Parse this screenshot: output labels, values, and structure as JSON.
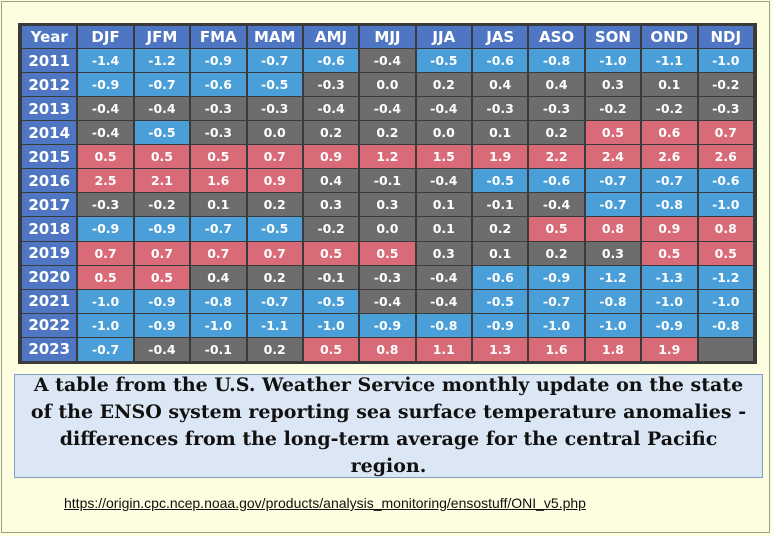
{
  "table": {
    "header": [
      "Year",
      "DJF",
      "JFM",
      "FMA",
      "MAM",
      "AMJ",
      "MJJ",
      "JJA",
      "JAS",
      "ASO",
      "SON",
      "OND",
      "NDJ"
    ],
    "rows": [
      {
        "year": "2011",
        "values": [
          "-1.4",
          "-1.2",
          "-0.9",
          "-0.7",
          "-0.6",
          "-0.4",
          "-0.5",
          "-0.6",
          "-0.8",
          "-1.0",
          "-1.1",
          "-1.0"
        ]
      },
      {
        "year": "2012",
        "values": [
          "-0.9",
          "-0.7",
          "-0.6",
          "-0.5",
          "-0.3",
          "0.0",
          "0.2",
          "0.4",
          "0.4",
          "0.3",
          "0.1",
          "-0.2"
        ]
      },
      {
        "year": "2013",
        "values": [
          "-0.4",
          "-0.4",
          "-0.3",
          "-0.3",
          "-0.4",
          "-0.4",
          "-0.4",
          "-0.3",
          "-0.3",
          "-0.2",
          "-0.2",
          "-0.3"
        ]
      },
      {
        "year": "2014",
        "values": [
          "-0.4",
          "-0.5",
          "-0.3",
          "0.0",
          "0.2",
          "0.2",
          "0.0",
          "0.1",
          "0.2",
          "0.5",
          "0.6",
          "0.7"
        ]
      },
      {
        "year": "2015",
        "values": [
          "0.5",
          "0.5",
          "0.5",
          "0.7",
          "0.9",
          "1.2",
          "1.5",
          "1.9",
          "2.2",
          "2.4",
          "2.6",
          "2.6"
        ]
      },
      {
        "year": "2016",
        "values": [
          "2.5",
          "2.1",
          "1.6",
          "0.9",
          "0.4",
          "-0.1",
          "-0.4",
          "-0.5",
          "-0.6",
          "-0.7",
          "-0.7",
          "-0.6"
        ]
      },
      {
        "year": "2017",
        "values": [
          "-0.3",
          "-0.2",
          "0.1",
          "0.2",
          "0.3",
          "0.3",
          "0.1",
          "-0.1",
          "-0.4",
          "-0.7",
          "-0.8",
          "-1.0"
        ]
      },
      {
        "year": "2018",
        "values": [
          "-0.9",
          "-0.9",
          "-0.7",
          "-0.5",
          "-0.2",
          "0.0",
          "0.1",
          "0.2",
          "0.5",
          "0.8",
          "0.9",
          "0.8"
        ]
      },
      {
        "year": "2019",
        "values": [
          "0.7",
          "0.7",
          "0.7",
          "0.7",
          "0.5",
          "0.5",
          "0.3",
          "0.1",
          "0.2",
          "0.3",
          "0.5",
          "0.5"
        ]
      },
      {
        "year": "2020",
        "values": [
          "0.5",
          "0.5",
          "0.4",
          "0.2",
          "-0.1",
          "-0.3",
          "-0.4",
          "-0.6",
          "-0.9",
          "-1.2",
          "-1.3",
          "-1.2"
        ]
      },
      {
        "year": "2021",
        "values": [
          "-1.0",
          "-0.9",
          "-0.8",
          "-0.7",
          "-0.5",
          "-0.4",
          "-0.4",
          "-0.5",
          "-0.7",
          "-0.8",
          "-1.0",
          "-1.0"
        ]
      },
      {
        "year": "2022",
        "values": [
          "-1.0",
          "-0.9",
          "-1.0",
          "-1.1",
          "-1.0",
          "-0.9",
          "-0.8",
          "-0.9",
          "-1.0",
          "-1.0",
          "-0.9",
          "-0.8"
        ]
      },
      {
        "year": "2023",
        "values": [
          "-0.7",
          "-0.4",
          "-0.1",
          "0.2",
          "0.5",
          "0.8",
          "1.1",
          "1.3",
          "1.6",
          "1.8",
          "1.9",
          ""
        ]
      }
    ],
    "colors": {
      "header": "#4e76c3",
      "cold": "#4a9fd8",
      "warm": "#d96a78",
      "neutral": "#6d6d6d"
    },
    "thresholds": {
      "warm_min": 0.5,
      "cold_max": -0.5
    }
  },
  "caption": "A table from the U.S. Weather Service monthly update on the state of the ENSO system reporting sea surface temperature anomalies - differences from the long-term average for the central Pacific region.",
  "source_link": "https://origin.cpc.ncep.noaa.gov/products/analysis_monitoring/ensostuff/ONI_v5.php"
}
